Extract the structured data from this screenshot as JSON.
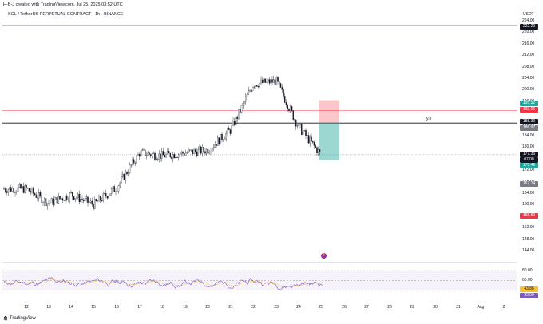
{
  "header": {
    "created_by": "H-B-J created with TradingView.com, Jul 25, 2025 03:52 UTC",
    "symbol_line": "SOL / TetherUS PERPETUAL CONTRACT · 1h · BINANCE",
    "currency": "USDT"
  },
  "price_axis": {
    "labels": [
      "224.00",
      "220.00",
      "216.00",
      "212.00",
      "208.00",
      "204.00",
      "200.00",
      "196.00",
      "192.00",
      "188.00",
      "184.00",
      "180.00",
      "176.00",
      "172.00",
      "168.00",
      "164.00",
      "160.00",
      "156.00",
      "152.00",
      "148.00",
      "144.00"
    ]
  },
  "price_tags": [
    {
      "text": "222.29",
      "color": "#131722"
    },
    {
      "text": "195.52",
      "color": "#26a69a"
    },
    {
      "text": "193.06",
      "color": "#f23645"
    },
    {
      "text": "188.39",
      "color": "#131722"
    },
    {
      "text": "186.97",
      "color": "#787b86"
    },
    {
      "text": "177.36",
      "color": "#131722"
    },
    {
      "text": "07:08",
      "color": "#131722"
    },
    {
      "text": "175.49",
      "color": "#26a69a"
    },
    {
      "text": "167.24",
      "color": "#787b86"
    },
    {
      "text": "155.50",
      "color": "#f23645"
    }
  ],
  "annotation": {
    "text": "y.o"
  },
  "rsi_axis": {
    "labels": [
      "80.00",
      "60.00",
      "40.00"
    ]
  },
  "rsi_tags": [
    {
      "text": "43.86",
      "color": "#fbc02d",
      "fg": "#131722"
    },
    {
      "text": "35.50",
      "color": "#7e57c2",
      "fg": "#ffffff"
    }
  ],
  "x_axis": {
    "labels": [
      "12",
      "13",
      "14",
      "15",
      "16",
      "17",
      "18",
      "19",
      "20",
      "21",
      "22",
      "23",
      "24",
      "25",
      "26",
      "27",
      "28",
      "29",
      "30",
      "31",
      "Aug",
      "2"
    ]
  },
  "footer": {
    "brand": "TradingView"
  },
  "colors": {
    "up": "#131722",
    "down": "#131722",
    "rsi": "#7e57c2",
    "rsi_ma": "#fbc02d",
    "stop": "#f23645",
    "target": "#26a69a"
  },
  "chart_data": {
    "type": "candlestick",
    "symbol": "SOL / TetherUS PERPETUAL CONTRACT",
    "timeframe": "1h",
    "x_labels": [
      "12",
      "13",
      "14",
      "15",
      "16",
      "17",
      "18",
      "19",
      "20",
      "21",
      "22",
      "23",
      "24",
      "25",
      "26",
      "27",
      "28",
      "29",
      "30",
      "31",
      "Aug",
      "2"
    ],
    "approx_close_path": [
      {
        "x": "12",
        "y": 165.5
      },
      {
        "x": "13",
        "y": 160.5
      },
      {
        "x": "14",
        "y": 163.5
      },
      {
        "x": "15",
        "y": 160.0
      },
      {
        "x": "16",
        "y": 166.0
      },
      {
        "x": "17",
        "y": 178.0
      },
      {
        "x": "18",
        "y": 177.0
      },
      {
        "x": "19",
        "y": 178.0
      },
      {
        "x": "20",
        "y": 179.0
      },
      {
        "x": "21",
        "y": 186.0
      },
      {
        "x": "22",
        "y": 202.0
      },
      {
        "x": "23",
        "y": 203.0
      },
      {
        "x": "24",
        "y": 187.0
      },
      {
        "x": "25",
        "y": 177.36
      }
    ],
    "horizontal_lines": [
      222.29,
      188.39
    ],
    "ylim": [
      142,
      226
    ],
    "rsi": {
      "ylim": [
        20,
        90
      ],
      "levels": [
        80,
        60,
        40
      ],
      "last": 35.5,
      "ma_last": 43.86
    }
  }
}
